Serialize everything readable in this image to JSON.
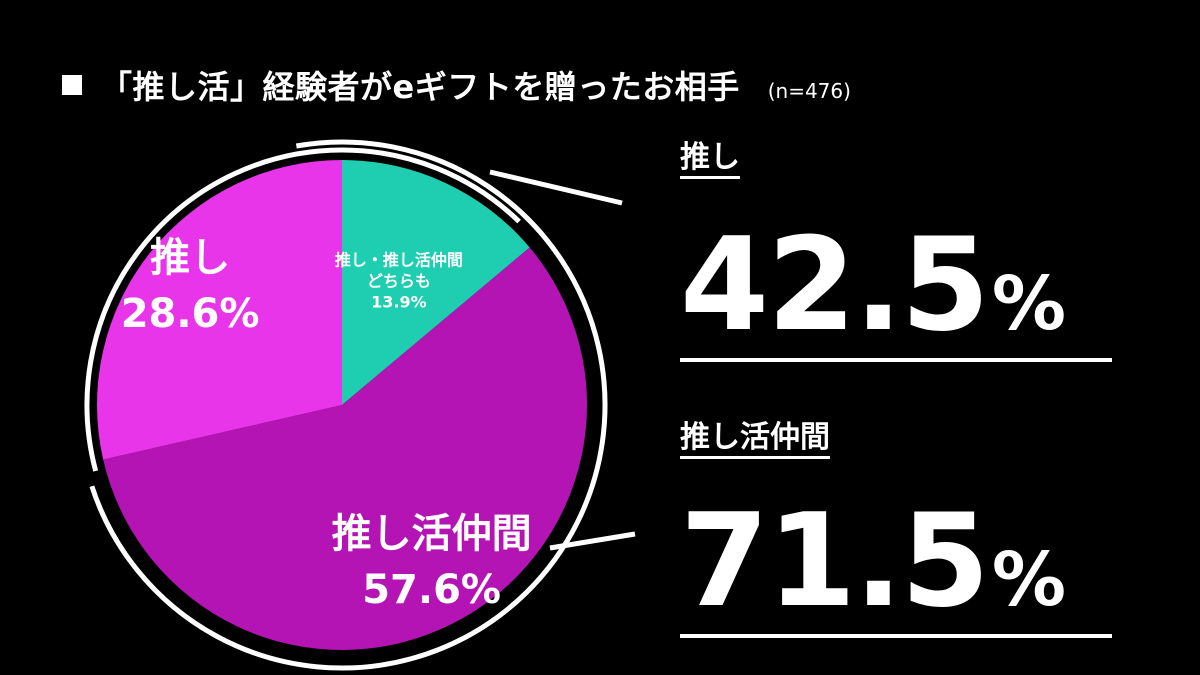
{
  "title": {
    "text": "「推し活」経験者がeギフトを贈ったお相手",
    "sample": "(n=476)"
  },
  "chart_data": {
    "type": "pie",
    "slices": [
      {
        "label_lines": [
          "推し・推し活仲間",
          "どちらも"
        ],
        "value": 13.9,
        "value_label": "13.9%",
        "color": "#1fcdb0"
      },
      {
        "label_lines": [
          "推し活仲間"
        ],
        "value": 57.6,
        "value_label": "57.6%",
        "color": "#b314b3"
      },
      {
        "label_lines": [
          "推し"
        ],
        "value": 28.6,
        "value_label": "28.6%",
        "color": "#e935ea"
      }
    ]
  },
  "stats": [
    {
      "label": "推し",
      "value": "42.5",
      "unit": "%"
    },
    {
      "label": "推し活仲間",
      "value": "71.5",
      "unit": "%"
    }
  ],
  "colors": {
    "background": "#000000",
    "text": "#ffffff"
  }
}
